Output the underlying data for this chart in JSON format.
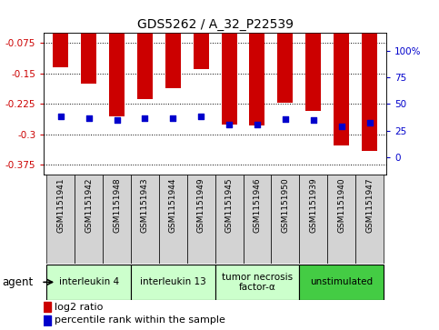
{
  "title": "GDS5262 / A_32_P22539",
  "samples": [
    "GSM1151941",
    "GSM1151942",
    "GSM1151948",
    "GSM1151943",
    "GSM1151944",
    "GSM1151949",
    "GSM1151945",
    "GSM1151946",
    "GSM1151950",
    "GSM1151939",
    "GSM1151940",
    "GSM1151947"
  ],
  "log2_ratio": [
    -0.135,
    -0.175,
    -0.255,
    -0.213,
    -0.185,
    -0.138,
    -0.275,
    -0.278,
    -0.222,
    -0.243,
    -0.328,
    -0.34
  ],
  "percentile_rank": [
    38,
    37,
    35,
    37,
    37,
    38,
    31,
    31,
    36,
    35,
    29,
    32
  ],
  "bar_color": "#cc0000",
  "dot_color": "#0000cc",
  "groups": [
    {
      "label": "interleukin 4",
      "start": 0,
      "end": 3,
      "color": "#ccffcc"
    },
    {
      "label": "interleukin 13",
      "start": 3,
      "end": 6,
      "color": "#ccffcc"
    },
    {
      "label": "tumor necrosis\nfactor-α",
      "start": 6,
      "end": 9,
      "color": "#ccffcc"
    },
    {
      "label": "unstimulated",
      "start": 9,
      "end": 12,
      "color": "#44cc44"
    }
  ],
  "ylim_left": [
    -0.4,
    -0.05
  ],
  "yticks_left": [
    -0.375,
    -0.3,
    -0.225,
    -0.15,
    -0.075
  ],
  "ylim_right": [
    -16.67,
    116.67
  ],
  "yticks_right": [
    0,
    25,
    50,
    75,
    100
  ],
  "ytick_labels_right": [
    "0",
    "25",
    "50",
    "75",
    "100%"
  ],
  "agent_label": "agent",
  "bar_width": 0.55,
  "xlim": [
    -0.6,
    11.6
  ]
}
